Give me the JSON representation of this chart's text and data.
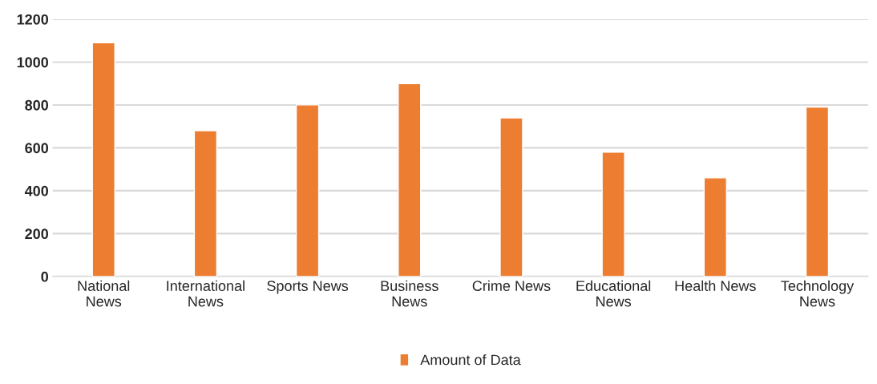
{
  "chart_data": {
    "type": "bar",
    "categories": [
      "National\nNews",
      "International\nNews",
      "Sports News",
      "Business\nNews",
      "Crime News",
      "Educational\nNews",
      "Health News",
      "Technology\nNews"
    ],
    "series": [
      {
        "name": "Amount of Data",
        "color": "#ed7d31",
        "values": [
          1090,
          680,
          800,
          900,
          740,
          580,
          460,
          790
        ]
      }
    ],
    "ylim": [
      0,
      1200
    ],
    "yticks": [
      0,
      200,
      400,
      600,
      800,
      1000,
      1200
    ],
    "grid": "y",
    "legend": "bottom"
  }
}
